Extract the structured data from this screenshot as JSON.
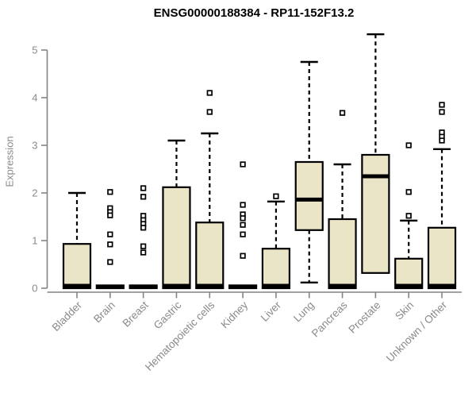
{
  "chart_data": {
    "type": "boxplot",
    "title": "ENSG00000188384 - RP11-152F13.2",
    "xlabel": "",
    "ylabel": "Expression",
    "ylim": [
      0,
      5
    ],
    "yticks": [
      0,
      1,
      2,
      3,
      4,
      5
    ],
    "grid": false,
    "legend": "none",
    "categories": [
      "Bladder",
      "Brain",
      "Breast",
      "Gastric",
      "Hematopoietic cells",
      "Kidney",
      "Liver",
      "Lung",
      "Pancreas",
      "Prostate",
      "Skin",
      "Unknown / Other"
    ],
    "series": [
      {
        "name": "Bladder",
        "whisker_low": 0,
        "q1": 0,
        "median": 0.05,
        "q3": 0.93,
        "whisker_high": 2.0,
        "outliers": []
      },
      {
        "name": "Brain",
        "whisker_low": 0,
        "q1": 0,
        "median": 0.03,
        "q3": 0.06,
        "whisker_high": 0.06,
        "outliers": [
          2.02,
          1.68,
          1.6,
          1.53,
          1.13,
          0.92,
          0.55
        ]
      },
      {
        "name": "Breast",
        "whisker_low": 0,
        "q1": 0,
        "median": 0.03,
        "q3": 0.06,
        "whisker_high": 0.06,
        "outliers": [
          2.1,
          1.92,
          1.52,
          1.43,
          1.35,
          1.27,
          0.88,
          0.75
        ]
      },
      {
        "name": "Gastric",
        "whisker_low": 0,
        "q1": 0,
        "median": 0.05,
        "q3": 2.12,
        "whisker_high": 3.1,
        "outliers": []
      },
      {
        "name": "Hematopoietic cells",
        "whisker_low": 0,
        "q1": 0,
        "median": 0.05,
        "q3": 1.38,
        "whisker_high": 3.25,
        "outliers": [
          4.1,
          3.7
        ]
      },
      {
        "name": "Kidney",
        "whisker_low": 0,
        "q1": 0,
        "median": 0.03,
        "q3": 0.06,
        "whisker_high": 0.06,
        "outliers": [
          2.6,
          1.75,
          1.55,
          1.47,
          1.33,
          1.13,
          0.68
        ]
      },
      {
        "name": "Liver",
        "whisker_low": 0,
        "q1": 0,
        "median": 0.05,
        "q3": 0.83,
        "whisker_high": 1.82,
        "outliers": [
          1.93
        ]
      },
      {
        "name": "Lung",
        "whisker_low": 0.12,
        "q1": 1.22,
        "median": 1.86,
        "q3": 2.65,
        "whisker_high": 4.75,
        "outliers": []
      },
      {
        "name": "Pancreas",
        "whisker_low": 0,
        "q1": 0,
        "median": 0.05,
        "q3": 1.45,
        "whisker_high": 2.6,
        "outliers": [
          3.68
        ]
      },
      {
        "name": "Prostate",
        "whisker_low": 0.32,
        "q1": 0.32,
        "median": 2.35,
        "q3": 2.8,
        "whisker_high": 5.33,
        "outliers": []
      },
      {
        "name": "Skin",
        "whisker_low": 0,
        "q1": 0,
        "median": 0.05,
        "q3": 0.62,
        "whisker_high": 1.42,
        "outliers": [
          3.0,
          2.02,
          1.52
        ]
      },
      {
        "name": "Unknown / Other",
        "whisker_low": 0,
        "q1": 0,
        "median": 0.05,
        "q3": 1.27,
        "whisker_high": 2.92,
        "outliers": [
          3.85,
          3.7,
          3.27,
          3.18,
          3.1
        ]
      }
    ],
    "colors": {
      "box_fill": "#EBE5C7",
      "box_border": "#000000",
      "median": "#000000",
      "whisker": "#000000",
      "outlier_fill": "#ffffff",
      "axis_line": "#848484",
      "axis_text": "#8a8a8a",
      "title_text": "#000000",
      "background": "#ffffff"
    }
  }
}
